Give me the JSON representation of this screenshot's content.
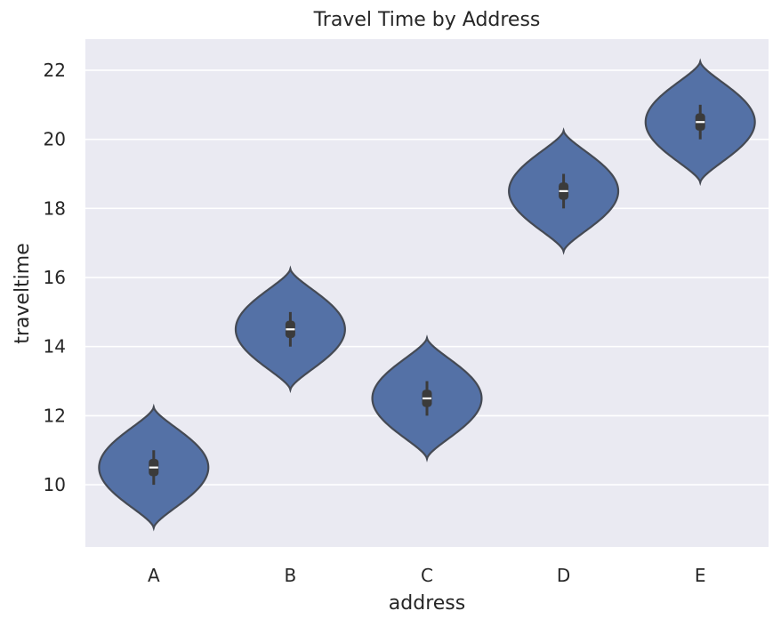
{
  "chart_data": {
    "type": "violin",
    "title": "Travel Time by Address",
    "xlabel": "address",
    "ylabel": "traveltime",
    "categories": [
      "A",
      "B",
      "C",
      "D",
      "E"
    ],
    "violins": [
      {
        "category": "A",
        "min": 10,
        "q1": 10.25,
        "median": 10.5,
        "q3": 10.75,
        "max": 11,
        "kde_low": 8.75,
        "kde_high": 12.25
      },
      {
        "category": "B",
        "min": 14,
        "q1": 14.25,
        "median": 14.5,
        "q3": 14.75,
        "max": 15,
        "kde_low": 12.75,
        "kde_high": 16.25
      },
      {
        "category": "C",
        "min": 12,
        "q1": 12.25,
        "median": 12.5,
        "q3": 12.75,
        "max": 13,
        "kde_low": 10.75,
        "kde_high": 14.25
      },
      {
        "category": "D",
        "min": 18,
        "q1": 18.25,
        "median": 18.5,
        "q3": 18.75,
        "max": 19,
        "kde_low": 16.75,
        "kde_high": 20.25
      },
      {
        "category": "E",
        "min": 20,
        "q1": 20.25,
        "median": 20.5,
        "q3": 20.75,
        "max": 21,
        "kde_low": 18.75,
        "kde_high": 22.25
      }
    ],
    "yticks": [
      10,
      12,
      14,
      16,
      18,
      20,
      22
    ],
    "ylim": [
      8.2,
      22.9
    ],
    "grid": true,
    "colors": {
      "background": "#eaeaf2",
      "grid": "#ffffff",
      "violin_fill": "#5471a6",
      "violin_edge": "#454a54",
      "box": "#3b3b3b",
      "median": "#ffffff"
    }
  }
}
